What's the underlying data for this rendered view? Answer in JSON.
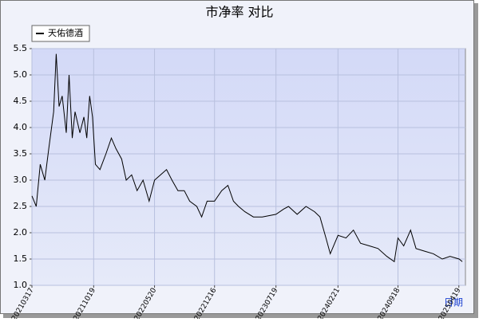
{
  "chart_data": {
    "type": "line",
    "title": "市净率  对比",
    "x_label": "日期",
    "x": [
      "20210317",
      "20210401",
      "20210415",
      "20210501",
      "20210515",
      "20210601",
      "20210610",
      "20210620",
      "20210701",
      "20210715",
      "20210725",
      "20210805",
      "20210815",
      "20210901",
      "20210915",
      "20210925",
      "20211005",
      "20211015",
      "20211025",
      "20211110",
      "20211201",
      "20211220",
      "20220105",
      "20220125",
      "20220210",
      "20220301",
      "20220320",
      "20220410",
      "20220501",
      "20220520",
      "20220610",
      "20220701",
      "20220720",
      "20220810",
      "20220901",
      "20220920",
      "20221015",
      "20221101",
      "20221120",
      "20221216",
      "20230110",
      "20230201",
      "20230220",
      "20230310",
      "20230401",
      "20230501",
      "20230601",
      "20230719",
      "20230815",
      "20230901",
      "20231001",
      "20231101",
      "20231201",
      "20231220",
      "20240110",
      "20240125",
      "20240221",
      "20240320",
      "20240415",
      "20240510",
      "20240610",
      "20240710",
      "20240810",
      "20240905",
      "20240918",
      "20241008",
      "20241101",
      "20241120",
      "20241220",
      "20250120",
      "20250220",
      "20250319",
      "20250420",
      "20250501"
    ],
    "series": [
      {
        "name": "天佑德酒",
        "color": "#000000",
        "values": [
          2.7,
          2.5,
          3.3,
          3.0,
          3.6,
          4.3,
          5.4,
          4.4,
          4.6,
          3.9,
          5.0,
          3.8,
          4.3,
          3.9,
          4.2,
          3.8,
          4.6,
          4.2,
          3.3,
          3.2,
          3.5,
          3.8,
          3.6,
          3.4,
          3.0,
          3.1,
          2.8,
          3.0,
          2.6,
          3.0,
          3.1,
          3.2,
          3.0,
          2.8,
          2.8,
          2.6,
          2.5,
          2.3,
          2.6,
          2.6,
          2.8,
          2.9,
          2.6,
          2.5,
          2.4,
          2.3,
          2.3,
          2.35,
          2.45,
          2.5,
          2.35,
          2.5,
          2.4,
          2.3,
          1.9,
          1.6,
          1.95,
          1.9,
          2.05,
          1.8,
          1.75,
          1.7,
          1.55,
          1.45,
          1.9,
          1.75,
          2.05,
          1.7,
          1.65,
          1.6,
          1.5,
          1.55,
          1.5,
          1.45
        ]
      }
    ],
    "xlim": [
      "20210317",
      "20250512"
    ],
    "xticks": [
      "20210317",
      "20211019",
      "20220520",
      "20221216",
      "20230719",
      "20240221",
      "20240918",
      "20250419"
    ],
    "ylim": [
      1.0,
      5.5
    ],
    "yticks": [
      {
        "value": 1.0,
        "label": "1.0"
      },
      1.5,
      {
        "value": 2.0,
        "label": "2.0"
      },
      2.5,
      {
        "value": 3.0,
        "label": "3.0"
      },
      3.5,
      {
        "value": 4.0,
        "label": "4.0"
      },
      4.5,
      {
        "value": 5.0,
        "label": "5.0"
      },
      5.5
    ],
    "grid": true
  }
}
